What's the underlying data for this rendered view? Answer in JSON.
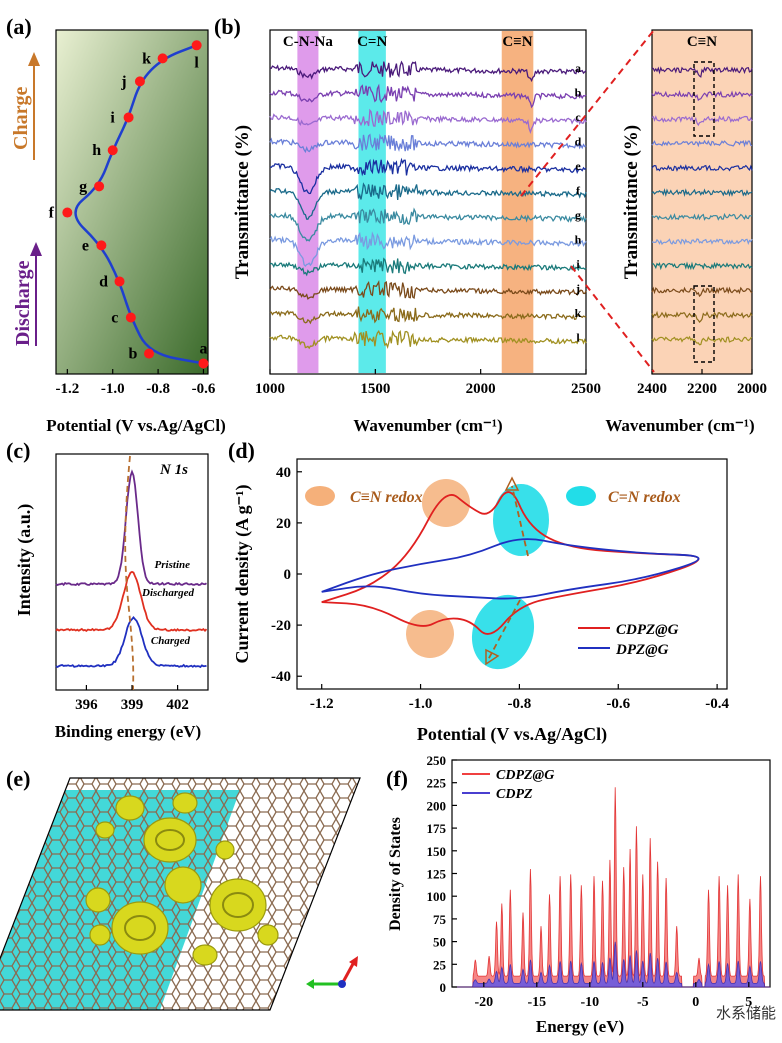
{
  "panels": {
    "a": "(a)",
    "b": "(b)",
    "c": "(c)",
    "d": "(d)",
    "e": "(e)",
    "f": "(f)"
  },
  "chart_data": [
    {
      "id": "a",
      "type": "line",
      "title": "",
      "xlabel": "Potential (V vs.Ag/AgCl)",
      "xlim": [
        -1.25,
        -0.58
      ],
      "xticks": [
        "-1.2",
        "-1.0",
        "-0.8",
        "-0.6"
      ],
      "arrow_labels": {
        "charge": "Charge",
        "discharge": "Discharge"
      },
      "colors": {
        "bg_top": "#e8f0d0",
        "bg_bottom": "#3c6a2a",
        "line": "#1f3fcf",
        "point": "#ff1a1a",
        "charge_arrow": "#c8782a",
        "discharge_arrow": "#6a1f8a"
      },
      "points": [
        {
          "label": "a",
          "x": -0.6,
          "y": 0.02
        },
        {
          "label": "b",
          "x": -0.84,
          "y": 0.05
        },
        {
          "label": "c",
          "x": -0.92,
          "y": 0.16
        },
        {
          "label": "d",
          "x": -0.97,
          "y": 0.27
        },
        {
          "label": "e",
          "x": -1.05,
          "y": 0.38
        },
        {
          "label": "f",
          "x": -1.2,
          "y": 0.48
        },
        {
          "label": "g",
          "x": -1.06,
          "y": 0.56
        },
        {
          "label": "h",
          "x": -1.0,
          "y": 0.67
        },
        {
          "label": "i",
          "x": -0.93,
          "y": 0.77
        },
        {
          "label": "j",
          "x": -0.88,
          "y": 0.88
        },
        {
          "label": "k",
          "x": -0.78,
          "y": 0.95
        },
        {
          "label": "l",
          "x": -0.63,
          "y": 0.99
        }
      ]
    },
    {
      "id": "b",
      "type": "line",
      "xlabel": "Wavenumber (cm⁻¹)",
      "ylabel": "Transmittance (%)",
      "xlim": [
        1000,
        2500
      ],
      "xticks": [
        "1000",
        "1500",
        "2000",
        "2500"
      ],
      "bands": [
        {
          "label": "C-N-Na",
          "from": 1130,
          "to": 1230,
          "color": "#d98ae8"
        },
        {
          "label": "C=N",
          "from": 1420,
          "to": 1550,
          "color": "#3fe6e6"
        },
        {
          "label": "C≡N",
          "from": 2100,
          "to": 2250,
          "color": "#f5a46a"
        }
      ],
      "series_labels": [
        "a",
        "b",
        "c",
        "d",
        "e",
        "f",
        "g",
        "h",
        "i",
        "j",
        "k",
        "l"
      ],
      "series_colors": [
        "#4a1a7a",
        "#7a3fb0",
        "#9a6ad0",
        "#6a7fd8",
        "#1a2fa0",
        "#1a6a8a",
        "#3a8aa0",
        "#7a9ae0",
        "#1a7a7a",
        "#7a4a1a",
        "#8a6a1a",
        "#a09020"
      ]
    },
    {
      "id": "b-inset",
      "type": "line",
      "xlabel": "Wavenumber (cm⁻¹)",
      "ylabel": "Transmittance (%)",
      "title": "C≡N",
      "xlim": [
        2400,
        2000
      ],
      "xticks": [
        "2400",
        "2200",
        "2000"
      ]
    },
    {
      "id": "c",
      "type": "line",
      "title": "N 1s",
      "xlabel": "Binding energy (eV)",
      "ylabel": "Intensity (a.u.)",
      "xlim": [
        394,
        404
      ],
      "xticks": [
        "396",
        "399",
        "402"
      ],
      "series": [
        {
          "name": "Pristine",
          "peak": 399.0,
          "color": "#6a2a8a"
        },
        {
          "name": "Discharged",
          "peak": 399.0,
          "color": "#e03020"
        },
        {
          "name": "Charged",
          "peak": 399.1,
          "color": "#2030c0"
        }
      ]
    },
    {
      "id": "d",
      "type": "line",
      "xlabel": "Potential (V vs.Ag/AgCl)",
      "ylabel": "Current density (A g⁻¹)",
      "xlim": [
        -1.25,
        -0.38
      ],
      "ylim": [
        -45,
        45
      ],
      "xticks": [
        "-1.2",
        "-1.0",
        "-0.8",
        "-0.6",
        "-0.4"
      ],
      "yticks": [
        "-40",
        "-20",
        "0",
        "20",
        "40"
      ],
      "legend": [
        {
          "name": "CDPZ@G",
          "color": "#e02020"
        },
        {
          "name": "DPZ@G",
          "color": "#2030c0"
        }
      ],
      "annotations": {
        "cn_triple": "C≡N redox",
        "cn_double": "C=N redox"
      },
      "series": [
        {
          "name": "CDPZ@G",
          "x": [
            -1.2,
            -1.1,
            -1.02,
            -0.95,
            -0.9,
            -0.86,
            -0.82,
            -0.78,
            -0.7,
            -0.55,
            -0.4,
            -0.55,
            -0.7,
            -0.8,
            -0.86,
            -0.9,
            -0.95,
            -1.0,
            -1.1,
            -1.2
          ],
          "y": [
            -11,
            -5,
            8,
            34,
            26,
            22,
            36,
            18,
            10,
            8,
            7,
            -3,
            -8,
            -12,
            -26,
            -18,
            -17,
            -22,
            -12,
            -11
          ]
        },
        {
          "name": "DPZ@G",
          "x": [
            -1.2,
            -1.1,
            -1.0,
            -0.9,
            -0.8,
            -0.7,
            -0.55,
            -0.4,
            -0.55,
            -0.7,
            -0.8,
            -0.9,
            -1.0,
            -1.1,
            -1.2
          ],
          "y": [
            -7,
            0,
            4,
            7,
            15,
            11,
            8,
            7,
            -2,
            -6,
            -10,
            -9,
            -8,
            -4,
            -7
          ]
        }
      ]
    },
    {
      "id": "f",
      "type": "area",
      "xlabel": "Energy (eV)",
      "ylabel": "Density of States",
      "xlim": [
        -23,
        7
      ],
      "ylim": [
        0,
        250
      ],
      "xticks": [
        "-20",
        "-15",
        "-10",
        "-5",
        "0",
        "5"
      ],
      "yticks": [
        "0",
        "25",
        "50",
        "75",
        "100",
        "125",
        "150",
        "175",
        "200",
        "225",
        "250"
      ],
      "legend": [
        {
          "name": "CDPZ@G",
          "color": "#f04040"
        },
        {
          "name": "CDPZ",
          "color": "#4a3fd0"
        }
      ],
      "peaks": [
        {
          "x": -20.8,
          "h": 18
        },
        {
          "x": -19.5,
          "h": 22
        },
        {
          "x": -18.8,
          "h": 60
        },
        {
          "x": -18.3,
          "h": 80
        },
        {
          "x": -17.5,
          "h": 95
        },
        {
          "x": -16.3,
          "h": 70
        },
        {
          "x": -15.6,
          "h": 118
        },
        {
          "x": -14.6,
          "h": 55
        },
        {
          "x": -13.8,
          "h": 90
        },
        {
          "x": -12.8,
          "h": 110
        },
        {
          "x": -11.8,
          "h": 112
        },
        {
          "x": -10.8,
          "h": 100
        },
        {
          "x": -9.6,
          "h": 110
        },
        {
          "x": -8.8,
          "h": 105
        },
        {
          "x": -8.1,
          "h": 128
        },
        {
          "x": -7.6,
          "h": 208
        },
        {
          "x": -6.8,
          "h": 120
        },
        {
          "x": -6.2,
          "h": 140
        },
        {
          "x": -5.6,
          "h": 165
        },
        {
          "x": -5.0,
          "h": 112
        },
        {
          "x": -4.3,
          "h": 152
        },
        {
          "x": -3.6,
          "h": 126
        },
        {
          "x": -2.8,
          "h": 108
        },
        {
          "x": -1.8,
          "h": 55
        },
        {
          "x": 0.3,
          "h": 20
        },
        {
          "x": 1.2,
          "h": 95
        },
        {
          "x": 2.2,
          "h": 110
        },
        {
          "x": 3.0,
          "h": 100
        },
        {
          "x": 4.0,
          "h": 112
        },
        {
          "x": 5.1,
          "h": 85
        },
        {
          "x": 6.1,
          "h": 110
        }
      ]
    }
  ],
  "watermark": "水系储能"
}
